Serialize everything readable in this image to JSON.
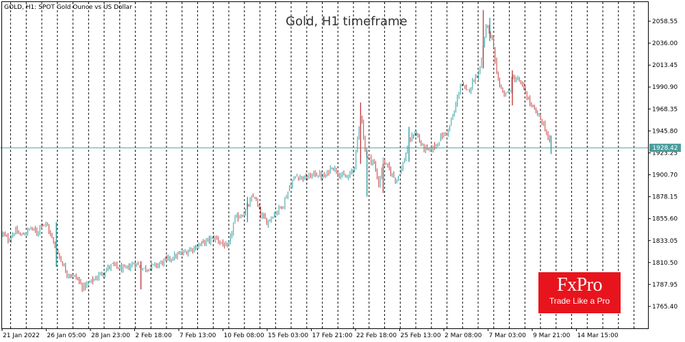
{
  "chart_data": {
    "type": "candlestick",
    "info": "GOLD, H1:  SPOT Gold Ounce vs US Dollar",
    "title": "Gold, H1 timeframe",
    "ylim": [
      1747.0,
      2076.0
    ],
    "y_ticks": [
      "2058.55",
      "2036.00",
      "2013.45",
      "1990.90",
      "1968.35",
      "1945.80",
      "1923.25",
      "1900.70",
      "1878.15",
      "1855.60",
      "1833.05",
      "1810.50",
      "1787.95",
      "1765.40"
    ],
    "x_tick_labels": [
      "21 Jan 2022",
      "26 Jan 05:00",
      "28 Jan 23:00",
      "2 Feb 18:00",
      "7 Feb 13:00",
      "10 Feb 08:00",
      "15 Feb 03:00",
      "17 Feb 21:00",
      "22 Feb 18:00",
      "25 Feb 13:00",
      "2 Mar 08:00",
      "7 Mar 03:00",
      "9 Mar 21:00",
      "14 Mar 15:00"
    ],
    "current_price": "1928.42",
    "price_path": [
      [
        0.0,
        1840
      ],
      [
        0.01,
        1834
      ],
      [
        0.02,
        1843
      ],
      [
        0.03,
        1838
      ],
      [
        0.045,
        1846
      ],
      [
        0.055,
        1840
      ],
      [
        0.06,
        1852
      ],
      [
        0.07,
        1848
      ],
      [
        0.08,
        1830
      ],
      [
        0.09,
        1815
      ],
      [
        0.1,
        1800
      ],
      [
        0.115,
        1795
      ],
      [
        0.125,
        1785
      ],
      [
        0.14,
        1792
      ],
      [
        0.155,
        1800
      ],
      [
        0.17,
        1808
      ],
      [
        0.19,
        1803
      ],
      [
        0.205,
        1810
      ],
      [
        0.22,
        1804
      ],
      [
        0.24,
        1808
      ],
      [
        0.26,
        1815
      ],
      [
        0.28,
        1820
      ],
      [
        0.3,
        1827
      ],
      [
        0.315,
        1832
      ],
      [
        0.33,
        1836
      ],
      [
        0.35,
        1825
      ],
      [
        0.36,
        1855
      ],
      [
        0.375,
        1862
      ],
      [
        0.39,
        1880
      ],
      [
        0.4,
        1860
      ],
      [
        0.41,
        1852
      ],
      [
        0.42,
        1860
      ],
      [
        0.435,
        1870
      ],
      [
        0.445,
        1888
      ],
      [
        0.455,
        1900
      ],
      [
        0.47,
        1897
      ],
      [
        0.485,
        1902
      ],
      [
        0.5,
        1898
      ],
      [
        0.51,
        1910
      ],
      [
        0.525,
        1900
      ],
      [
        0.535,
        1897
      ],
      [
        0.545,
        1908
      ],
      [
        0.552,
        1945
      ],
      [
        0.556,
        1968
      ],
      [
        0.56,
        1935
      ],
      [
        0.565,
        1918
      ],
      [
        0.575,
        1915
      ],
      [
        0.583,
        1890
      ],
      [
        0.59,
        1915
      ],
      [
        0.6,
        1905
      ],
      [
        0.61,
        1895
      ],
      [
        0.62,
        1910
      ],
      [
        0.63,
        1935
      ],
      [
        0.64,
        1945
      ],
      [
        0.65,
        1930
      ],
      [
        0.66,
        1925
      ],
      [
        0.67,
        1930
      ],
      [
        0.68,
        1940
      ],
      [
        0.69,
        1945
      ],
      [
        0.7,
        1965
      ],
      [
        0.71,
        1995
      ],
      [
        0.72,
        1985
      ],
      [
        0.73,
        1998
      ],
      [
        0.74,
        2010
      ],
      [
        0.745,
        2035
      ],
      [
        0.75,
        2055
      ],
      [
        0.755,
        2045
      ],
      [
        0.76,
        2035
      ],
      [
        0.765,
        2005
      ],
      [
        0.775,
        1985
      ],
      [
        0.785,
        1985
      ],
      [
        0.79,
        2000
      ],
      [
        0.8,
        1998
      ],
      [
        0.81,
        1985
      ],
      [
        0.815,
        1978
      ],
      [
        0.82,
        1970
      ],
      [
        0.83,
        1962
      ],
      [
        0.84,
        1950
      ],
      [
        0.85,
        1928
      ]
    ],
    "spikes": [
      [
        0.084,
        1806,
        1852
      ],
      [
        0.215,
        1783,
        1812
      ],
      [
        0.38,
        1852,
        1878
      ],
      [
        0.555,
        1912,
        1975
      ],
      [
        0.565,
        1878,
        1926
      ],
      [
        0.59,
        1882,
        1912
      ],
      [
        0.63,
        1914,
        1950
      ],
      [
        0.745,
        2010,
        2070
      ],
      [
        0.755,
        2038,
        2062
      ],
      [
        0.79,
        1972,
        2008
      ],
      [
        0.85,
        1922,
        1941
      ]
    ],
    "colors": {
      "up": "#2e9c9c",
      "down": "#c43c3c",
      "grid": "#000000",
      "price_line": "#4a9d9c",
      "price_tag": "#4a9d9c"
    }
  },
  "logo": {
    "name": "FxPro",
    "tagline": "Trade Like a Pro",
    "color": "#e8141d"
  }
}
